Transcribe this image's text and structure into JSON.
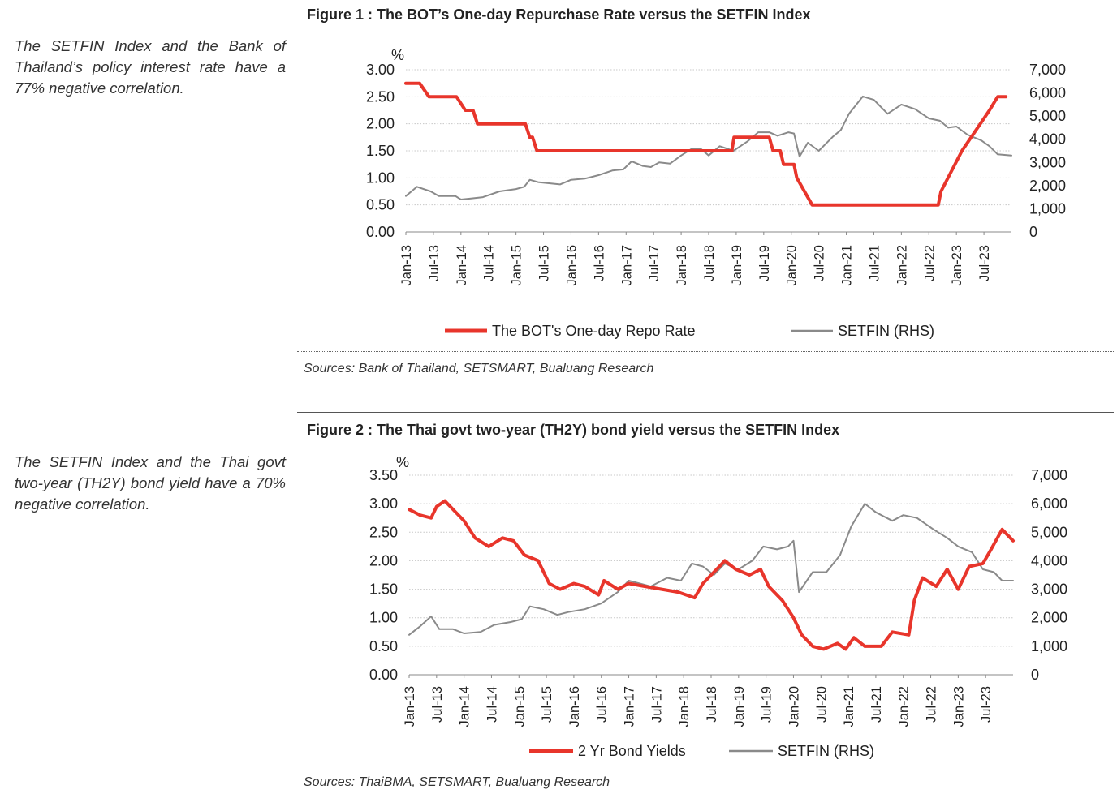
{
  "colors": {
    "red": "#e8352b",
    "grey": "#8a8a8a",
    "grid": "#c8c8c8"
  },
  "figure1": {
    "title": "Figure 1 : The BOT’s One-day Repurchase Rate versus the SETFIN Index",
    "side_note": "The SETFIN Index and the Bank of Thailand’s policy interest rate have a 77% negative correlation.",
    "source": "Sources: Bank of Thailand, SETSMART, Bualuang Research",
    "chart_data": {
      "type": "line",
      "unit_label": "%",
      "x_labels": [
        "Jan-13",
        "Jul-13",
        "Jan-14",
        "Jul-14",
        "Jan-15",
        "Jul-15",
        "Jan-16",
        "Jul-16",
        "Jan-17",
        "Jul-17",
        "Jan-18",
        "Jul-18",
        "Jan-19",
        "Jul-19",
        "Jan-20",
        "Jul-20",
        "Jan-21",
        "Jul-21",
        "Jan-22",
        "Jul-22",
        "Jan-23",
        "Jul-23"
      ],
      "y_left": {
        "min": 0,
        "max": 3,
        "ticks": [
          "0.00",
          "0.50",
          "1.00",
          "1.50",
          "2.00",
          "2.50",
          "3.00"
        ]
      },
      "y_right": {
        "min": 0,
        "max": 7000,
        "ticks": [
          "0",
          "1,000",
          "2,000",
          "3,000",
          "4,000",
          "5,000",
          "6,000",
          "7,000"
        ]
      },
      "series": [
        {
          "name": "The BOT's One-day Repo Rate",
          "axis": "left",
          "points": [
            [
              2013.0,
              2.75
            ],
            [
              2013.25,
              2.75
            ],
            [
              2013.42,
              2.5
            ],
            [
              2013.92,
              2.5
            ],
            [
              2014.08,
              2.25
            ],
            [
              2014.22,
              2.25
            ],
            [
              2014.3,
              2.0
            ],
            [
              2015.17,
              2.0
            ],
            [
              2015.25,
              1.75
            ],
            [
              2015.3,
              1.75
            ],
            [
              2015.38,
              1.5
            ],
            [
              2018.92,
              1.5
            ],
            [
              2018.96,
              1.75
            ],
            [
              2019.6,
              1.75
            ],
            [
              2019.67,
              1.5
            ],
            [
              2019.8,
              1.5
            ],
            [
              2019.86,
              1.25
            ],
            [
              2020.05,
              1.25
            ],
            [
              2020.1,
              1.0
            ],
            [
              2020.38,
              0.5
            ],
            [
              2022.67,
              0.5
            ],
            [
              2022.72,
              0.75
            ],
            [
              2023.1,
              1.5
            ],
            [
              2023.6,
              2.25
            ],
            [
              2023.75,
              2.5
            ],
            [
              2023.9,
              2.5
            ]
          ]
        },
        {
          "name": "SETFIN (RHS)",
          "axis": "right",
          "points": [
            [
              2013.0,
              1550
            ],
            [
              2013.2,
              1950
            ],
            [
              2013.45,
              1750
            ],
            [
              2013.6,
              1550
            ],
            [
              2013.9,
              1550
            ],
            [
              2014.0,
              1400
            ],
            [
              2014.2,
              1450
            ],
            [
              2014.4,
              1500
            ],
            [
              2014.7,
              1750
            ],
            [
              2015.0,
              1850
            ],
            [
              2015.15,
              1950
            ],
            [
              2015.25,
              2250
            ],
            [
              2015.4,
              2150
            ],
            [
              2015.6,
              2100
            ],
            [
              2015.8,
              2050
            ],
            [
              2016.0,
              2250
            ],
            [
              2016.25,
              2300
            ],
            [
              2016.5,
              2450
            ],
            [
              2016.75,
              2650
            ],
            [
              2016.95,
              2700
            ],
            [
              2017.1,
              3050
            ],
            [
              2017.3,
              2850
            ],
            [
              2017.45,
              2800
            ],
            [
              2017.6,
              3000
            ],
            [
              2017.8,
              2950
            ],
            [
              2018.0,
              3300
            ],
            [
              2018.2,
              3600
            ],
            [
              2018.35,
              3600
            ],
            [
              2018.5,
              3300
            ],
            [
              2018.7,
              3700
            ],
            [
              2018.95,
              3500
            ],
            [
              2019.2,
              3900
            ],
            [
              2019.4,
              4300
            ],
            [
              2019.6,
              4300
            ],
            [
              2019.75,
              4150
            ],
            [
              2019.95,
              4300
            ],
            [
              2020.05,
              4250
            ],
            [
              2020.15,
              3250
            ],
            [
              2020.3,
              3850
            ],
            [
              2020.5,
              3500
            ],
            [
              2020.75,
              4100
            ],
            [
              2020.9,
              4400
            ],
            [
              2021.05,
              5100
            ],
            [
              2021.3,
              5850
            ],
            [
              2021.5,
              5700
            ],
            [
              2021.75,
              5100
            ],
            [
              2022.0,
              5500
            ],
            [
              2022.25,
              5300
            ],
            [
              2022.5,
              4900
            ],
            [
              2022.7,
              4800
            ],
            [
              2022.85,
              4500
            ],
            [
              2023.0,
              4550
            ],
            [
              2023.2,
              4200
            ],
            [
              2023.45,
              3950
            ],
            [
              2023.6,
              3700
            ],
            [
              2023.75,
              3350
            ],
            [
              2024.0,
              3300
            ]
          ]
        }
      ],
      "legend": {
        "placement": "bottom",
        "entries": [
          "The BOT's One-day Repo Rate",
          "SETFIN (RHS)"
        ]
      }
    }
  },
  "figure2": {
    "title": "Figure 2 : The Thai govt two-year (TH2Y) bond yield versus the SETFIN Index",
    "side_note": "The SETFIN Index and the Thai govt two-year (TH2Y) bond yield have a 70% negative correlation.",
    "source": "Sources: ThaiBMA, SETSMART, Bualuang Research",
    "chart_data": {
      "type": "line",
      "unit_label": "%",
      "x_labels": [
        "Jan-13",
        "Jul-13",
        "Jan-14",
        "Jul-14",
        "Jan-15",
        "Jul-15",
        "Jan-16",
        "Jul-16",
        "Jan-17",
        "Jul-17",
        "Jan-18",
        "Jul-18",
        "Jan-19",
        "Jul-19",
        "Jan-20",
        "Jul-20",
        "Jan-21",
        "Jul-21",
        "Jan-22",
        "Jul-22",
        "Jan-23",
        "Jul-23"
      ],
      "y_left": {
        "min": 0,
        "max": 3.5,
        "ticks": [
          "0.00",
          "0.50",
          "1.00",
          "1.50",
          "2.00",
          "2.50",
          "3.00",
          "3.50"
        ]
      },
      "y_right": {
        "min": 0,
        "max": 7000,
        "ticks": [
          "0",
          "1,000",
          "2,000",
          "3,000",
          "4,000",
          "5,000",
          "6,000",
          "7,000"
        ]
      },
      "series": [
        {
          "name": "2 Yr Bond Yields",
          "axis": "left",
          "points": [
            [
              2013.0,
              2.9
            ],
            [
              2013.2,
              2.8
            ],
            [
              2013.4,
              2.75
            ],
            [
              2013.5,
              2.95
            ],
            [
              2013.65,
              3.05
            ],
            [
              2013.85,
              2.85
            ],
            [
              2014.0,
              2.7
            ],
            [
              2014.2,
              2.4
            ],
            [
              2014.45,
              2.25
            ],
            [
              2014.7,
              2.4
            ],
            [
              2014.9,
              2.35
            ],
            [
              2015.1,
              2.1
            ],
            [
              2015.35,
              2.0
            ],
            [
              2015.55,
              1.6
            ],
            [
              2015.75,
              1.5
            ],
            [
              2016.0,
              1.6
            ],
            [
              2016.2,
              1.55
            ],
            [
              2016.45,
              1.4
            ],
            [
              2016.55,
              1.65
            ],
            [
              2016.8,
              1.5
            ],
            [
              2017.0,
              1.6
            ],
            [
              2017.3,
              1.55
            ],
            [
              2017.6,
              1.5
            ],
            [
              2017.9,
              1.45
            ],
            [
              2018.2,
              1.35
            ],
            [
              2018.35,
              1.6
            ],
            [
              2018.6,
              1.85
            ],
            [
              2018.75,
              2.0
            ],
            [
              2018.95,
              1.85
            ],
            [
              2019.2,
              1.75
            ],
            [
              2019.4,
              1.85
            ],
            [
              2019.55,
              1.55
            ],
            [
              2019.8,
              1.3
            ],
            [
              2020.0,
              1.0
            ],
            [
              2020.15,
              0.7
            ],
            [
              2020.35,
              0.5
            ],
            [
              2020.55,
              0.45
            ],
            [
              2020.8,
              0.55
            ],
            [
              2020.95,
              0.45
            ],
            [
              2021.1,
              0.65
            ],
            [
              2021.3,
              0.5
            ],
            [
              2021.6,
              0.5
            ],
            [
              2021.8,
              0.75
            ],
            [
              2022.1,
              0.7
            ],
            [
              2022.2,
              1.3
            ],
            [
              2022.35,
              1.7
            ],
            [
              2022.6,
              1.55
            ],
            [
              2022.8,
              1.85
            ],
            [
              2023.0,
              1.5
            ],
            [
              2023.2,
              1.9
            ],
            [
              2023.45,
              1.95
            ],
            [
              2023.6,
              2.2
            ],
            [
              2023.8,
              2.55
            ],
            [
              2024.0,
              2.35
            ]
          ]
        },
        {
          "name": "SETFIN (RHS)",
          "axis": "right",
          "points": [
            [
              2013.0,
              1400
            ],
            [
              2013.2,
              1700
            ],
            [
              2013.4,
              2050
            ],
            [
              2013.55,
              1600
            ],
            [
              2013.8,
              1600
            ],
            [
              2014.0,
              1450
            ],
            [
              2014.3,
              1500
            ],
            [
              2014.55,
              1750
            ],
            [
              2014.85,
              1850
            ],
            [
              2015.05,
              1950
            ],
            [
              2015.2,
              2400
            ],
            [
              2015.45,
              2300
            ],
            [
              2015.7,
              2100
            ],
            [
              2015.9,
              2200
            ],
            [
              2016.2,
              2300
            ],
            [
              2016.5,
              2500
            ],
            [
              2016.8,
              2900
            ],
            [
              2017.0,
              3300
            ],
            [
              2017.2,
              3200
            ],
            [
              2017.4,
              3100
            ],
            [
              2017.7,
              3400
            ],
            [
              2017.95,
              3300
            ],
            [
              2018.15,
              3900
            ],
            [
              2018.35,
              3800
            ],
            [
              2018.55,
              3500
            ],
            [
              2018.75,
              3900
            ],
            [
              2019.0,
              3700
            ],
            [
              2019.25,
              4000
            ],
            [
              2019.45,
              4500
            ],
            [
              2019.7,
              4400
            ],
            [
              2019.9,
              4500
            ],
            [
              2020.0,
              4700
            ],
            [
              2020.1,
              2900
            ],
            [
              2020.35,
              3600
            ],
            [
              2020.6,
              3600
            ],
            [
              2020.85,
              4200
            ],
            [
              2021.05,
              5200
            ],
            [
              2021.3,
              6000
            ],
            [
              2021.5,
              5700
            ],
            [
              2021.8,
              5400
            ],
            [
              2022.0,
              5600
            ],
            [
              2022.25,
              5500
            ],
            [
              2022.55,
              5100
            ],
            [
              2022.8,
              4800
            ],
            [
              2023.0,
              4500
            ],
            [
              2023.25,
              4300
            ],
            [
              2023.45,
              3700
            ],
            [
              2023.65,
              3600
            ],
            [
              2023.8,
              3300
            ],
            [
              2024.0,
              3300
            ]
          ]
        }
      ],
      "legend": {
        "placement": "bottom",
        "entries": [
          "2 Yr Bond Yields",
          "SETFIN (RHS)"
        ]
      }
    }
  }
}
